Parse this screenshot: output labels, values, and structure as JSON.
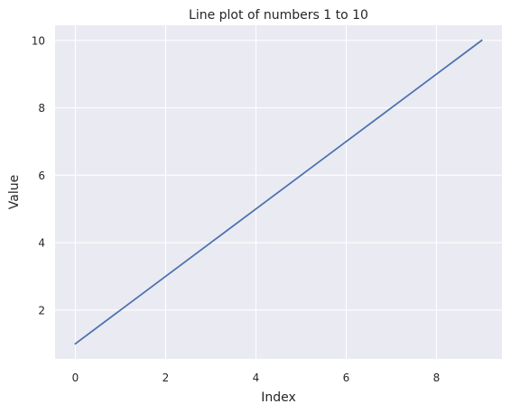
{
  "chart_data": {
    "type": "line",
    "title": "Line plot of numbers 1 to 10",
    "xlabel": "Index",
    "ylabel": "Value",
    "x": [
      0,
      1,
      2,
      3,
      4,
      5,
      6,
      7,
      8,
      9
    ],
    "series": [
      {
        "values": [
          1,
          2,
          3,
          4,
          5,
          6,
          7,
          8,
          9,
          10
        ]
      }
    ],
    "xlim": [
      -0.45,
      9.45
    ],
    "ylim": [
      0.55,
      10.45
    ],
    "xticks": [
      0,
      2,
      4,
      6,
      8
    ],
    "yticks": [
      2,
      4,
      6,
      8,
      10
    ],
    "xtick_labels": [
      "0",
      "2",
      "4",
      "6",
      "8"
    ],
    "ytick_labels": [
      "2",
      "4",
      "6",
      "8",
      "10"
    ],
    "grid": true,
    "legend": "none",
    "colors": {
      "background": "#eaeaf2",
      "grid": "#ffffff",
      "line": "#4c72b0",
      "text": "#262626"
    }
  }
}
